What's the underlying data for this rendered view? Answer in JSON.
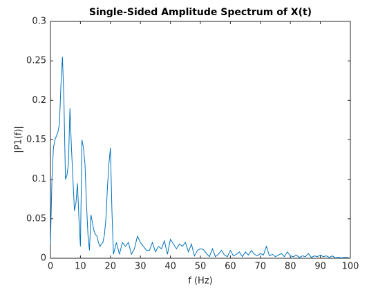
{
  "chart_data": {
    "type": "line",
    "title": "Single-Sided Amplitude Spectrum of X(t)",
    "xlabel": "f (Hz)",
    "ylabel": "|P1(f)|",
    "xlim": [
      0,
      100
    ],
    "xticks": [
      0,
      10,
      20,
      30,
      40,
      50,
      60,
      70,
      80,
      90,
      100
    ],
    "ylim": [
      0,
      0.3
    ],
    "yticks": [
      0,
      0.05,
      0.1,
      0.15,
      0.2,
      0.25,
      0.3
    ],
    "grid": false,
    "series": [
      {
        "name": "P1",
        "color": "#0072bd",
        "x": [
          0,
          0.5,
          1,
          1.5,
          2,
          2.5,
          3,
          3.5,
          4,
          4.5,
          5,
          5.5,
          6,
          6.5,
          7,
          7.5,
          8,
          8.5,
          9,
          9.5,
          10,
          10.5,
          11,
          11.5,
          12,
          12.5,
          13,
          13.5,
          14,
          14.5,
          15,
          15.5,
          16,
          16.5,
          17,
          17.5,
          18,
          18.5,
          19,
          19.5,
          20,
          20.5,
          21,
          22,
          23,
          24,
          25,
          26,
          27,
          28,
          29,
          30,
          31,
          32,
          33,
          34,
          35,
          36,
          37,
          38,
          39,
          40,
          41,
          42,
          43,
          44,
          45,
          46,
          47,
          48,
          49,
          50,
          51,
          52,
          53,
          54,
          55,
          56,
          57,
          58,
          59,
          60,
          61,
          62,
          63,
          64,
          65,
          66,
          67,
          68,
          69,
          70,
          71,
          72,
          73,
          74,
          75,
          76,
          77,
          78,
          79,
          80,
          81,
          82,
          83,
          84,
          85,
          86,
          87,
          88,
          89,
          90,
          91,
          92,
          93,
          94,
          95,
          96,
          97,
          98,
          99,
          99.5
        ],
        "values": [
          0.018,
          0.1,
          0.14,
          0.15,
          0.155,
          0.16,
          0.17,
          0.22,
          0.255,
          0.2,
          0.1,
          0.105,
          0.12,
          0.19,
          0.14,
          0.1,
          0.06,
          0.07,
          0.095,
          0.05,
          0.015,
          0.15,
          0.14,
          0.12,
          0.07,
          0.03,
          0.01,
          0.055,
          0.045,
          0.035,
          0.03,
          0.028,
          0.02,
          0.015,
          0.018,
          0.02,
          0.03,
          0.05,
          0.09,
          0.12,
          0.14,
          0.06,
          0.005,
          0.02,
          0.005,
          0.02,
          0.015,
          0.02,
          0.005,
          0.012,
          0.028,
          0.02,
          0.015,
          0.01,
          0.01,
          0.02,
          0.008,
          0.015,
          0.012,
          0.022,
          0.005,
          0.024,
          0.018,
          0.012,
          0.018,
          0.015,
          0.02,
          0.008,
          0.018,
          0.003,
          0.01,
          0.012,
          0.011,
          0.006,
          0.002,
          0.012,
          0.002,
          0.005,
          0.01,
          0.004,
          0.002,
          0.01,
          0.003,
          0.005,
          0.008,
          0.002,
          0.008,
          0.004,
          0.01,
          0.005,
          0.003,
          0.006,
          0.004,
          0.015,
          0.003,
          0.005,
          0.002,
          0.004,
          0.006,
          0.002,
          0.008,
          0.003,
          0.002,
          0.004,
          0.001,
          0.003,
          0.002,
          0.006,
          0.001,
          0.003,
          0.002,
          0.004,
          0.002,
          0.003,
          0.001,
          0.003,
          0.0005,
          0.001,
          0.0005,
          0.001,
          0.001,
          0.0005
        ]
      }
    ]
  }
}
